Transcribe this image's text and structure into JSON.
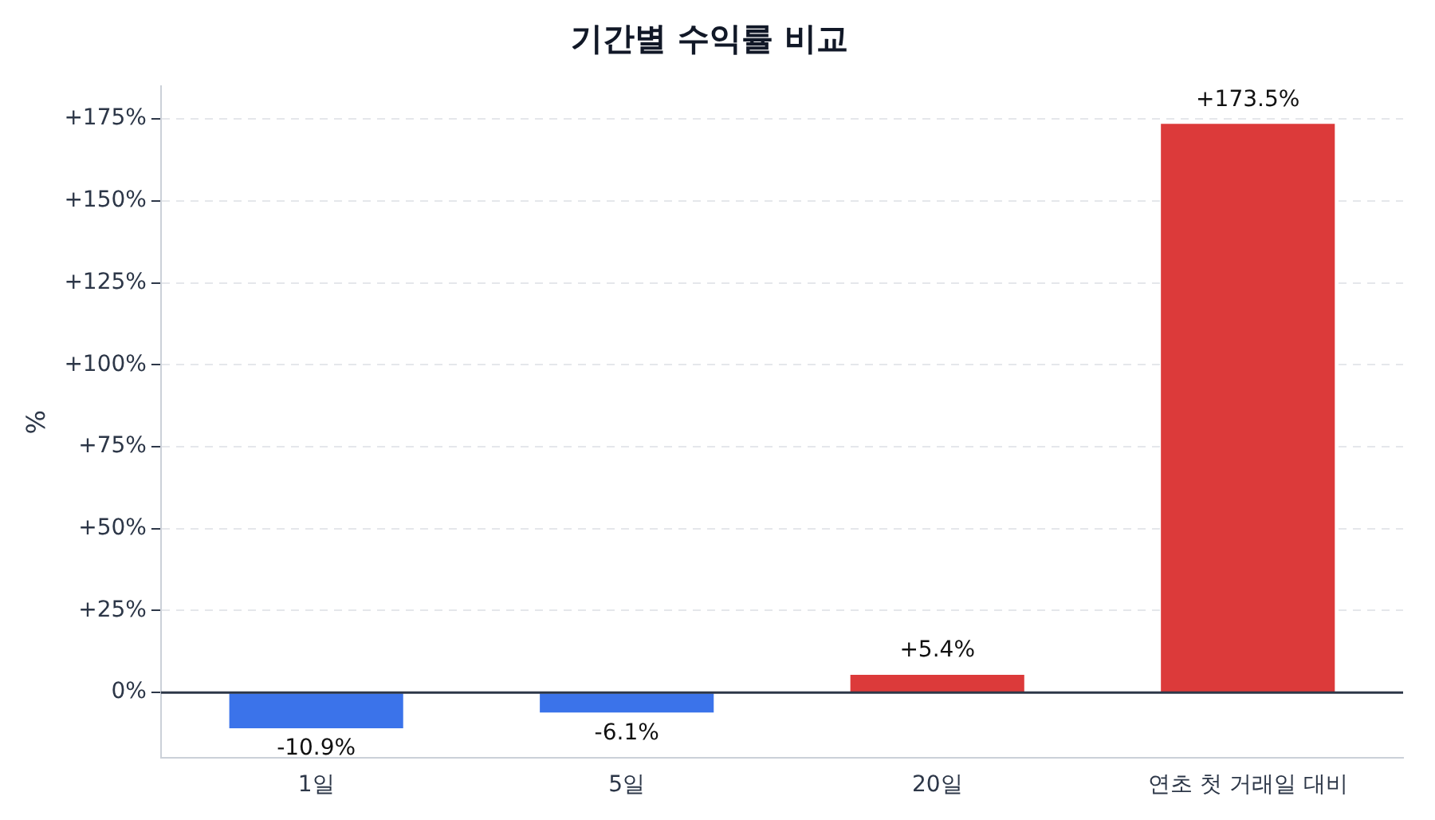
{
  "chart_data": {
    "type": "bar",
    "title": "기간별 수익률 비교",
    "ylabel": "%",
    "categories": [
      "1일",
      "5일",
      "20일",
      "연초 첫 거래일 대비"
    ],
    "values": [
      -10.9,
      -6.1,
      5.4,
      173.5
    ],
    "colors": [
      "#3b73ea",
      "#3b73ea",
      "#dc3a3a",
      "#dc3a3a"
    ],
    "value_labels": [
      "-10.9%",
      "-6.1%",
      "+5.4%",
      "+173.5%"
    ],
    "ylim": [
      -20,
      185
    ],
    "yticks": [
      {
        "value": 0,
        "label": "0%"
      },
      {
        "value": 25,
        "label": "+25%"
      },
      {
        "value": 50,
        "label": "+50%"
      },
      {
        "value": 75,
        "label": "+75%"
      },
      {
        "value": 100,
        "label": "+100%"
      },
      {
        "value": 125,
        "label": "+125%"
      },
      {
        "value": 150,
        "label": "+150%"
      },
      {
        "value": 175,
        "label": "+175%"
      }
    ],
    "ref_lines": [
      {
        "axis": "y",
        "value": 0,
        "color": "#2d3748"
      }
    ],
    "grid": "y",
    "legend": false
  }
}
